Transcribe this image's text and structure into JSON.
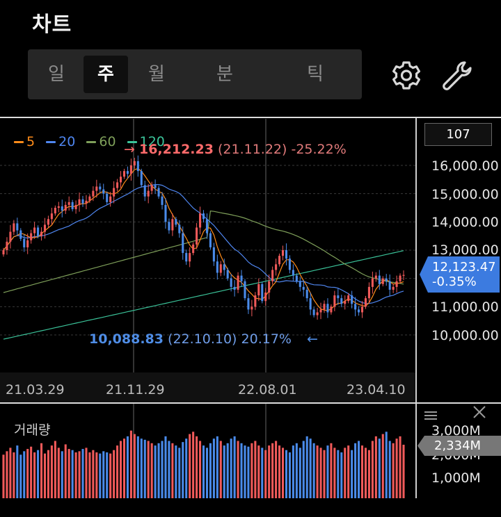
{
  "header": {
    "title": "차트"
  },
  "tabs": [
    {
      "label": "일",
      "active": false
    },
    {
      "label": "주",
      "active": true
    },
    {
      "label": "월",
      "active": false
    },
    {
      "label": "분",
      "active": false
    },
    {
      "label": "틱",
      "active": false
    }
  ],
  "toolbar": {
    "settings_icon": "gear-icon",
    "tools_icon": "wrench-icon"
  },
  "colors": {
    "up": "#f05a5a",
    "down": "#4a8bea",
    "ma5": "#ff8c1a",
    "ma20": "#4f86f0",
    "ma60": "#7fa05a",
    "ma120": "#3bc49a",
    "price_tag": "#3c7be0"
  },
  "chart_data": {
    "type": "candlestick",
    "interval": "주",
    "legend": [
      {
        "label": "5",
        "color": "#ff8c1a"
      },
      {
        "label": "20",
        "color": "#4f86f0"
      },
      {
        "label": "60",
        "color": "#7fa05a"
      },
      {
        "label": "120",
        "color": "#3bc49a"
      }
    ],
    "x_ticks": [
      "21.03.29",
      "21.11.29",
      "22.08.01",
      "23.04.10"
    ],
    "y_ticks": [
      "16,000.00",
      "15,000.00",
      "14,000.00",
      "13,000.00",
      "12,000.00",
      "11,000.00",
      "10,000.00"
    ],
    "ylim": [
      9500,
      16800
    ],
    "high": {
      "arrow": "→",
      "value": "16,212.23",
      "date": "(21.11.22)",
      "pct": "-25.22%"
    },
    "low": {
      "arrow": "←",
      "value": "10,088.83",
      "date": "(22.10.10)",
      "pct": "20.17%"
    },
    "current": {
      "price": "12,123.47",
      "change": "-0.35%"
    },
    "count_box": "107",
    "closes": [
      13000,
      13300,
      13650,
      13950,
      13700,
      13400,
      13100,
      13350,
      13600,
      13800,
      13500,
      13650,
      13900,
      14100,
      14300,
      14500,
      14550,
      14400,
      14600,
      14700,
      14450,
      14600,
      14800,
      14650,
      14750,
      14900,
      15100,
      15250,
      15150,
      15000,
      14700,
      14900,
      15200,
      15400,
      15600,
      15800,
      15700,
      16000,
      16150,
      15800,
      15300,
      14900,
      15100,
      15300,
      15200,
      14900,
      14600,
      14000,
      13700,
      14100,
      13900,
      13600,
      12900,
      12600,
      12900,
      13200,
      13800,
      14300,
      14100,
      13600,
      13100,
      12600,
      12200,
      12500,
      12300,
      12000,
      11700,
      11600,
      12100,
      11900,
      11300,
      10900,
      11000,
      11400,
      11800,
      11200,
      11500,
      11900,
      12300,
      12500,
      12800,
      13000,
      12700,
      12300,
      12100,
      11900,
      11700,
      11600,
      11300,
      10900,
      10700,
      10800,
      10900,
      11100,
      10800,
      11000,
      11400,
      11300,
      11100,
      11200,
      11400,
      11100,
      10900,
      10800,
      11000,
      11300,
      11700,
      12000,
      12100,
      11800,
      12000,
      11900,
      11600,
      11700,
      11900,
      12100,
      12123
    ],
    "volume": {
      "title": "거래량",
      "y_ticks": [
        "3,000M",
        "2,000M",
        "1,000M"
      ],
      "ylim": [
        0,
        3200
      ],
      "current": "2,334M",
      "values": [
        1900,
        2050,
        2200,
        2000,
        2300,
        1900,
        2050,
        2150,
        2250,
        2000,
        2100,
        2400,
        1950,
        2100,
        2300,
        2500,
        2200,
        2050,
        2350,
        2150,
        2100,
        2000,
        2050,
        2150,
        2200,
        2000,
        2100,
        2000,
        1950,
        2050,
        2000,
        1950,
        2100,
        2300,
        2500,
        2600,
        2700,
        2950,
        2800,
        2700,
        2600,
        2550,
        2500,
        2400,
        2300,
        2400,
        2500,
        2700,
        2500,
        2400,
        2300,
        2200,
        2450,
        2600,
        2800,
        2900,
        2700,
        2500,
        2300,
        2200,
        2400,
        2600,
        2700,
        2500,
        2300,
        2400,
        2600,
        2700,
        2500,
        2400,
        2300,
        2250,
        2400,
        2500,
        2300,
        2200,
        2100,
        2300,
        2400,
        2500,
        2300,
        2200,
        2100,
        2000,
        2300,
        2400,
        2200,
        2500,
        2700,
        2600,
        2400,
        2300,
        2200,
        2100,
        2300,
        2400,
        2200,
        2100,
        2000,
        2200,
        2300,
        2100,
        2400,
        2500,
        2300,
        2200,
        2100,
        2500,
        2700,
        2600,
        2800,
        2900,
        2500,
        2400,
        2600,
        2700,
        2334
      ]
    }
  }
}
